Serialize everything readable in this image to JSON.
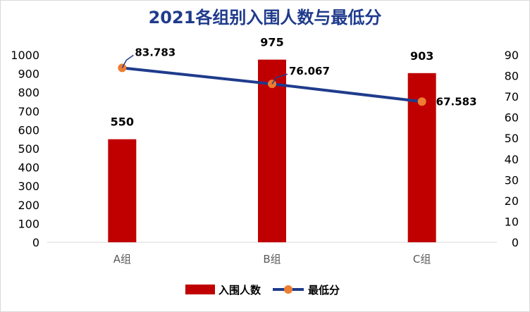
{
  "chart_data": {
    "type": "bar",
    "title": "2021各组别入围人数与最低分",
    "categories": [
      "A组",
      "B组",
      "C组"
    ],
    "series": [
      {
        "name": "入围人数",
        "type": "bar",
        "axis": "left",
        "values": [
          550,
          975,
          903
        ],
        "labels": [
          "550",
          "975",
          "903"
        ]
      },
      {
        "name": "最低分",
        "type": "line",
        "axis": "right",
        "values": [
          83.783,
          76.067,
          67.583
        ],
        "labels": [
          "83.783",
          "76.067",
          "67.583"
        ]
      }
    ],
    "y_left": {
      "range": [
        0,
        1000
      ],
      "ticks": [
        "0",
        "100",
        "200",
        "300",
        "400",
        "500",
        "600",
        "700",
        "800",
        "900",
        "1000"
      ]
    },
    "y_right": {
      "range": [
        0,
        90
      ],
      "ticks": [
        "0",
        "10",
        "20",
        "30",
        "40",
        "50",
        "60",
        "70",
        "80",
        "90"
      ]
    },
    "grid": false,
    "legend_position": "bottom",
    "colors": {
      "title": "#1f3b8c",
      "bar": "#c00000",
      "line": "#1f3b8c",
      "marker": "#ed7d31"
    }
  }
}
